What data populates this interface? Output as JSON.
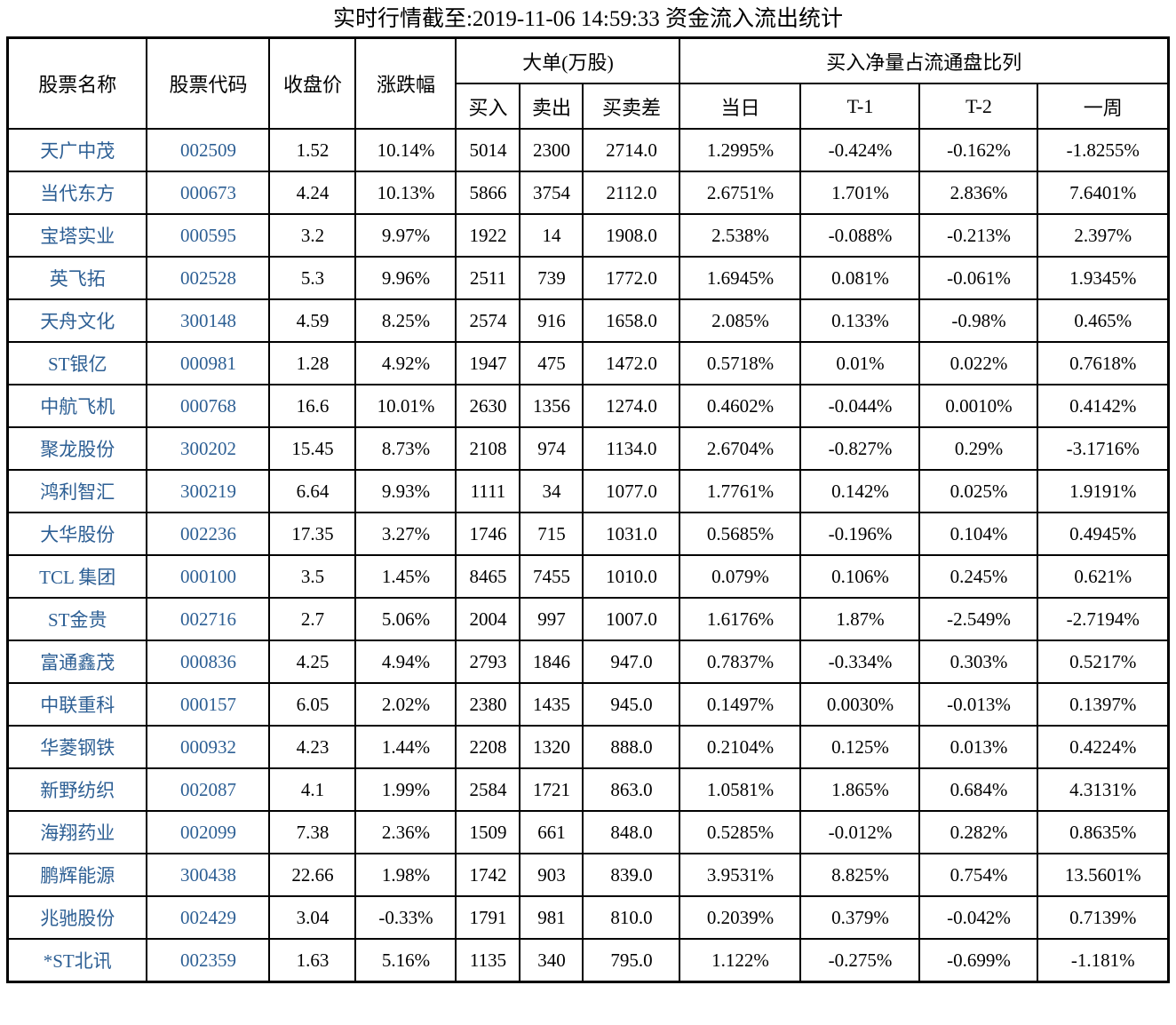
{
  "title": "实时行情截至:2019-11-06 14:59:33 资金流入流出统计",
  "colors": {
    "stock_text_blue": "#2d5f94",
    "border": "#000000",
    "background": "#ffffff"
  },
  "table": {
    "headers": {
      "name": "股票名称",
      "code": "股票代码",
      "close": "收盘价",
      "change": "涨跌幅",
      "big_order_group": "大单(万股)",
      "buy": "买入",
      "sell": "卖出",
      "diff": "买卖差",
      "net_ratio_group": "买入净量占流通盘比列",
      "day": "当日",
      "t1": "T-1",
      "t2": "T-2",
      "week": "一周"
    },
    "rows": [
      {
        "name": "天广中茂",
        "code": "002509",
        "close": "1.52",
        "change": "10.14%",
        "buy": "5014",
        "sell": "2300",
        "diff": "2714.0",
        "day": "1.2995%",
        "t1": "-0.424%",
        "t2": "-0.162%",
        "week": "-1.8255%"
      },
      {
        "name": "当代东方",
        "code": "000673",
        "close": "4.24",
        "change": "10.13%",
        "buy": "5866",
        "sell": "3754",
        "diff": "2112.0",
        "day": "2.6751%",
        "t1": "1.701%",
        "t2": "2.836%",
        "week": "7.6401%"
      },
      {
        "name": "宝塔实业",
        "code": "000595",
        "close": "3.2",
        "change": "9.97%",
        "buy": "1922",
        "sell": "14",
        "diff": "1908.0",
        "day": "2.538%",
        "t1": "-0.088%",
        "t2": "-0.213%",
        "week": "2.397%"
      },
      {
        "name": "英飞拓",
        "code": "002528",
        "close": "5.3",
        "change": "9.96%",
        "buy": "2511",
        "sell": "739",
        "diff": "1772.0",
        "day": "1.6945%",
        "t1": "0.081%",
        "t2": "-0.061%",
        "week": "1.9345%"
      },
      {
        "name": "天舟文化",
        "code": "300148",
        "close": "4.59",
        "change": "8.25%",
        "buy": "2574",
        "sell": "916",
        "diff": "1658.0",
        "day": "2.085%",
        "t1": "0.133%",
        "t2": "-0.98%",
        "week": "0.465%"
      },
      {
        "name": "ST银亿",
        "code": "000981",
        "close": "1.28",
        "change": "4.92%",
        "buy": "1947",
        "sell": "475",
        "diff": "1472.0",
        "day": "0.5718%",
        "t1": "0.01%",
        "t2": "0.022%",
        "week": "0.7618%"
      },
      {
        "name": "中航飞机",
        "code": "000768",
        "close": "16.6",
        "change": "10.01%",
        "buy": "2630",
        "sell": "1356",
        "diff": "1274.0",
        "day": "0.4602%",
        "t1": "-0.044%",
        "t2": "0.0010%",
        "week": "0.4142%"
      },
      {
        "name": "聚龙股份",
        "code": "300202",
        "close": "15.45",
        "change": "8.73%",
        "buy": "2108",
        "sell": "974",
        "diff": "1134.0",
        "day": "2.6704%",
        "t1": "-0.827%",
        "t2": "0.29%",
        "week": "-3.1716%"
      },
      {
        "name": "鸿利智汇",
        "code": "300219",
        "close": "6.64",
        "change": "9.93%",
        "buy": "1111",
        "sell": "34",
        "diff": "1077.0",
        "day": "1.7761%",
        "t1": "0.142%",
        "t2": "0.025%",
        "week": "1.9191%"
      },
      {
        "name": "大华股份",
        "code": "002236",
        "close": "17.35",
        "change": "3.27%",
        "buy": "1746",
        "sell": "715",
        "diff": "1031.0",
        "day": "0.5685%",
        "t1": "-0.196%",
        "t2": "0.104%",
        "week": "0.4945%"
      },
      {
        "name": "TCL 集团",
        "code": "000100",
        "close": "3.5",
        "change": "1.45%",
        "buy": "8465",
        "sell": "7455",
        "diff": "1010.0",
        "day": "0.079%",
        "t1": "0.106%",
        "t2": "0.245%",
        "week": "0.621%"
      },
      {
        "name": "ST金贵",
        "code": "002716",
        "close": "2.7",
        "change": "5.06%",
        "buy": "2004",
        "sell": "997",
        "diff": "1007.0",
        "day": "1.6176%",
        "t1": "1.87%",
        "t2": "-2.549%",
        "week": "-2.7194%"
      },
      {
        "name": "富通鑫茂",
        "code": "000836",
        "close": "4.25",
        "change": "4.94%",
        "buy": "2793",
        "sell": "1846",
        "diff": "947.0",
        "day": "0.7837%",
        "t1": "-0.334%",
        "t2": "0.303%",
        "week": "0.5217%"
      },
      {
        "name": "中联重科",
        "code": "000157",
        "close": "6.05",
        "change": "2.02%",
        "buy": "2380",
        "sell": "1435",
        "diff": "945.0",
        "day": "0.1497%",
        "t1": "0.0030%",
        "t2": "-0.013%",
        "week": "0.1397%"
      },
      {
        "name": "华菱钢铁",
        "code": "000932",
        "close": "4.23",
        "change": "1.44%",
        "buy": "2208",
        "sell": "1320",
        "diff": "888.0",
        "day": "0.2104%",
        "t1": "0.125%",
        "t2": "0.013%",
        "week": "0.4224%"
      },
      {
        "name": "新野纺织",
        "code": "002087",
        "close": "4.1",
        "change": "1.99%",
        "buy": "2584",
        "sell": "1721",
        "diff": "863.0",
        "day": "1.0581%",
        "t1": "1.865%",
        "t2": "0.684%",
        "week": "4.3131%"
      },
      {
        "name": "海翔药业",
        "code": "002099",
        "close": "7.38",
        "change": "2.36%",
        "buy": "1509",
        "sell": "661",
        "diff": "848.0",
        "day": "0.5285%",
        "t1": "-0.012%",
        "t2": "0.282%",
        "week": "0.8635%"
      },
      {
        "name": "鹏辉能源",
        "code": "300438",
        "close": "22.66",
        "change": "1.98%",
        "buy": "1742",
        "sell": "903",
        "diff": "839.0",
        "day": "3.9531%",
        "t1": "8.825%",
        "t2": "0.754%",
        "week": "13.5601%"
      },
      {
        "name": "兆驰股份",
        "code": "002429",
        "close": "3.04",
        "change": "-0.33%",
        "buy": "1791",
        "sell": "981",
        "diff": "810.0",
        "day": "0.2039%",
        "t1": "0.379%",
        "t2": "-0.042%",
        "week": "0.7139%"
      },
      {
        "name": "*ST北讯",
        "code": "002359",
        "close": "1.63",
        "change": "5.16%",
        "buy": "1135",
        "sell": "340",
        "diff": "795.0",
        "day": "1.122%",
        "t1": "-0.275%",
        "t2": "-0.699%",
        "week": "-1.181%"
      }
    ]
  }
}
